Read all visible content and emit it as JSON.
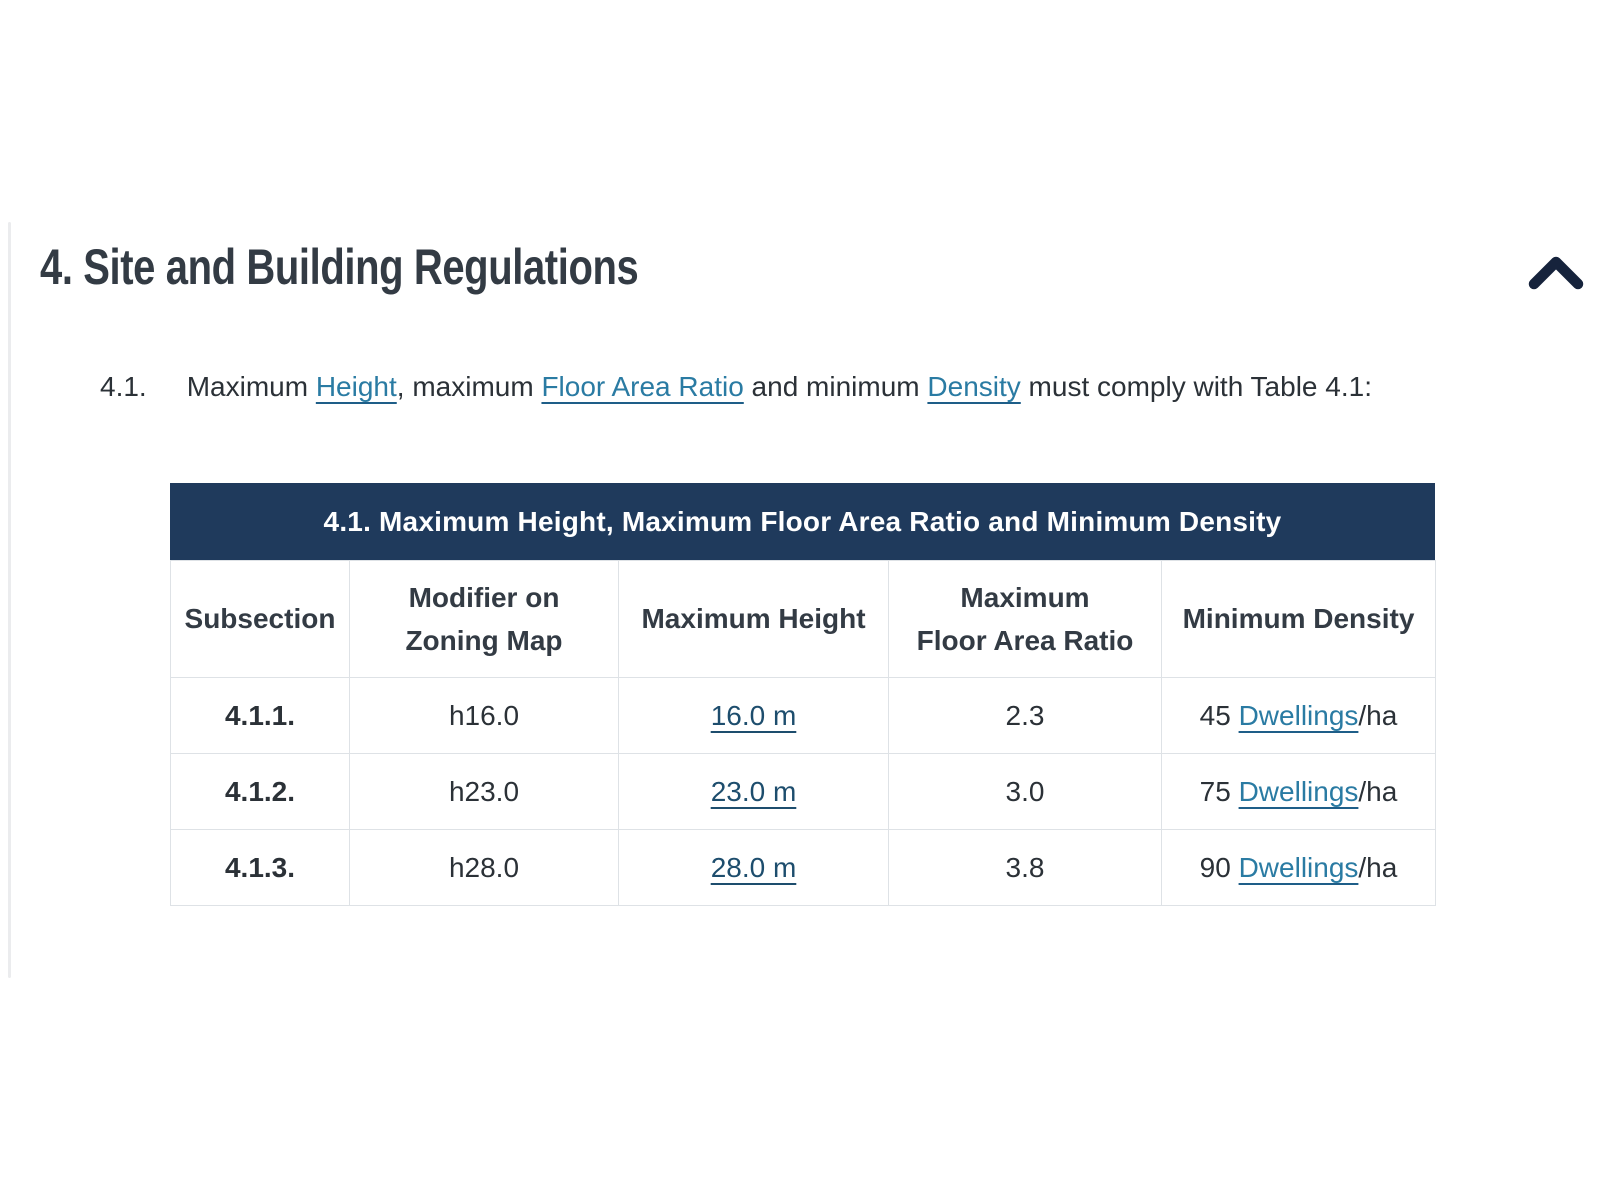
{
  "section": {
    "heading": "4. Site and Building Regulations",
    "collapse_icon": "chevron-up"
  },
  "clause": {
    "number": "4.1.",
    "segments": [
      {
        "text": "Maximum "
      },
      {
        "text": "Height",
        "link": "height-link"
      },
      {
        "text": ", maximum "
      },
      {
        "text": "Floor Area Ratio",
        "link": "floor-area-ratio-link"
      },
      {
        "text": " and minimum "
      },
      {
        "text": "Density",
        "link": "density-link"
      },
      {
        "text": " must comply with Table 4.1:"
      }
    ]
  },
  "table": {
    "title": "4.1. Maximum Height, Maximum Floor Area Ratio and Minimum Density",
    "columns": [
      {
        "id": "subsection",
        "lines": [
          "Subsection"
        ]
      },
      {
        "id": "modifier-on-zoning-map",
        "lines": [
          "Modifier on",
          "Zoning Map"
        ]
      },
      {
        "id": "maximum-height",
        "lines": [
          "Maximum Height"
        ]
      },
      {
        "id": "maximum-floor-area-ratio",
        "lines": [
          "Maximum",
          "Floor Area Ratio"
        ]
      },
      {
        "id": "minimum-density",
        "lines": [
          "Minimum Density"
        ]
      }
    ],
    "rows": [
      {
        "subsection": "4.1.1.",
        "modifier": "h16.0",
        "max_height": "16.0 m",
        "max_floor_area_ratio": "2.3",
        "min_density": {
          "prefix": "45 ",
          "link": "Dwellings",
          "suffix": "/ha"
        }
      },
      {
        "subsection": "4.1.2.",
        "modifier": "h23.0",
        "max_height": "23.0 m",
        "max_floor_area_ratio": "3.0",
        "min_density": {
          "prefix": "75 ",
          "link": "Dwellings",
          "suffix": "/ha"
        }
      },
      {
        "subsection": "4.1.3.",
        "modifier": "h28.0",
        "max_height": "28.0 m",
        "max_floor_area_ratio": "3.8",
        "min_density": {
          "prefix": "90 ",
          "link": "Dwellings",
          "suffix": "/ha"
        }
      }
    ]
  },
  "colors": {
    "table_header_bg": "#1f3a5c",
    "link_teal": "#2a7ba3",
    "link_navy": "#1d4d6d",
    "heading_text": "#333b44",
    "body_text": "#2b3137",
    "border": "#dee2e6",
    "chevron": "#16233c",
    "left_rule": "#ebecee"
  }
}
